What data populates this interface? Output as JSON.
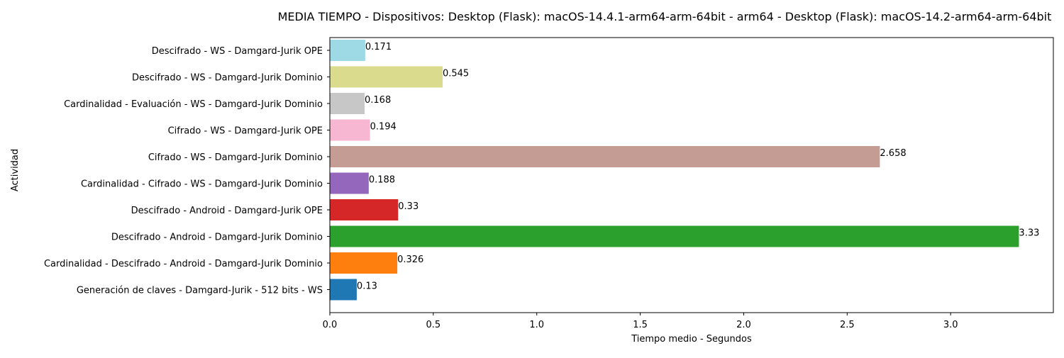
{
  "chart_data": {
    "type": "bar",
    "orientation": "horizontal",
    "title": "MEDIA TIEMPO - Dispositivos: Desktop (Flask): macOS-14.4.1-arm64-arm-64bit - arm64 - Desktop (Flask): macOS-14.2-arm64-arm-64bit",
    "xlabel": "Tiempo medio - Segundos",
    "ylabel": "Actividad",
    "xlim": [
      0,
      3.4965
    ],
    "xticks": [
      "0.0",
      "0.5",
      "1.0",
      "1.5",
      "2.0",
      "2.5",
      "3.0"
    ],
    "grid": false,
    "categories": [
      "Generación de claves - Damgard-Jurik - 512 bits - WS",
      "Cardinalidad - Descifrado - Android - Damgard-Jurik Dominio",
      "Descifrado - Android - Damgard-Jurik Dominio",
      "Descifrado - Android - Damgard-Jurik OPE",
      "Cardinalidad - Cifrado - WS - Damgard-Jurik Dominio",
      "Cifrado - WS - Damgard-Jurik Dominio",
      "Cifrado - WS - Damgard-Jurik OPE",
      "Cardinalidad - Evaluación - WS - Damgard-Jurik Dominio",
      "Descifrado - WS - Damgard-Jurik Dominio",
      "Descifrado - WS - Damgard-Jurik OPE"
    ],
    "values": [
      0.13,
      0.326,
      3.33,
      0.33,
      0.188,
      2.658,
      0.194,
      0.168,
      0.545,
      0.171
    ],
    "data_labels": [
      "0.13",
      "0.326",
      "3.33",
      "0.33",
      "0.188",
      "2.658",
      "0.194",
      "0.168",
      "0.545",
      "0.171"
    ],
    "colors": [
      "#1f77b4",
      "#ff7f0e",
      "#2ca02c",
      "#d62728",
      "#9467bd",
      "#c49c94",
      "#f7b6d2",
      "#c7c7c7",
      "#dbdb8d",
      "#9edae5"
    ]
  }
}
